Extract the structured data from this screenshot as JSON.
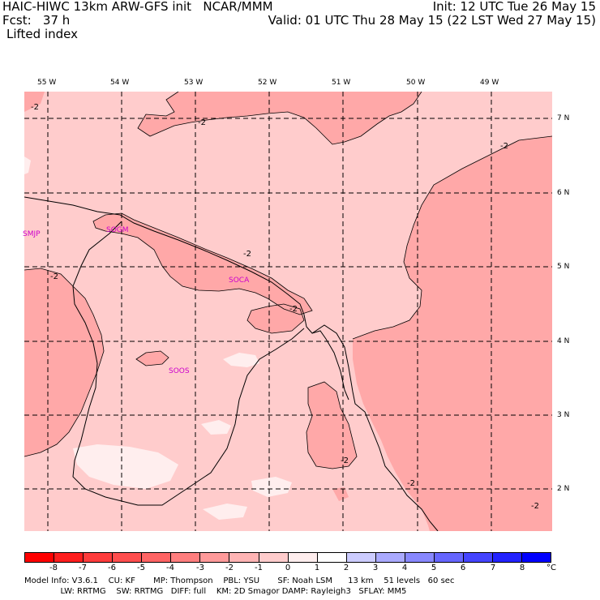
{
  "header": {
    "left_line1": "HAIC-HIWC 13km ARW-GFS init   NCAR/MMM",
    "left_line2": "Fcst:   37 h",
    "left_line3": "Lifted index",
    "right_line1": "Init: 12 UTC Tue 26 May 15",
    "right_line2": "Valid: 01 UTC Thu 28 May 15 (22 LST Wed 27 May 15)"
  },
  "longitude_labels": [
    "55 W",
    "54 W",
    "53 W",
    "52 W",
    "51 W",
    "50 W",
    "49 W"
  ],
  "latitude_labels": [
    "7 N",
    "6 N",
    "5 N",
    "4 N",
    "3 N",
    "2 N"
  ],
  "stations": [
    "SMJP",
    "SOGM",
    "SOCA",
    "SOOS"
  ],
  "contour_label": "-2",
  "colorbar": {
    "ticks": [
      "-8",
      "-7",
      "-6",
      "-5",
      "-4",
      "-3",
      "-2",
      "-1",
      "0",
      "1",
      "2",
      "3",
      "4",
      "5",
      "6",
      "7",
      "8"
    ],
    "unit": "°C",
    "colors": [
      "#ff0000",
      "#ff1e1e",
      "#ff3c3c",
      "#ff5a5a",
      "#ff7878",
      "#ff9696",
      "#ffb4b4",
      "#ffcccc",
      "#ffe6e6",
      "#ffffff",
      "#ccccff",
      "#aaaaff",
      "#8888ff",
      "#6666ff",
      "#4444ff",
      "#2222ff",
      "#0000ff"
    ]
  },
  "footer": {
    "line1": "Model Info: V3.6.1    CU: KF       MP: Thompson    PBL: YSU       SF: Noah LSM      13 km    51 levels   60 sec",
    "line2": "              LW: RRTMG    SW: RRTMG   DIFF: full    KM: 2D Smagor DAMP: Rayleigh3   SFLAY: MM5"
  },
  "map_colors": {
    "base": "#ffcccc",
    "darker": "#ffa8a8",
    "lighter": "#ffeeee",
    "coast": "#000000"
  }
}
